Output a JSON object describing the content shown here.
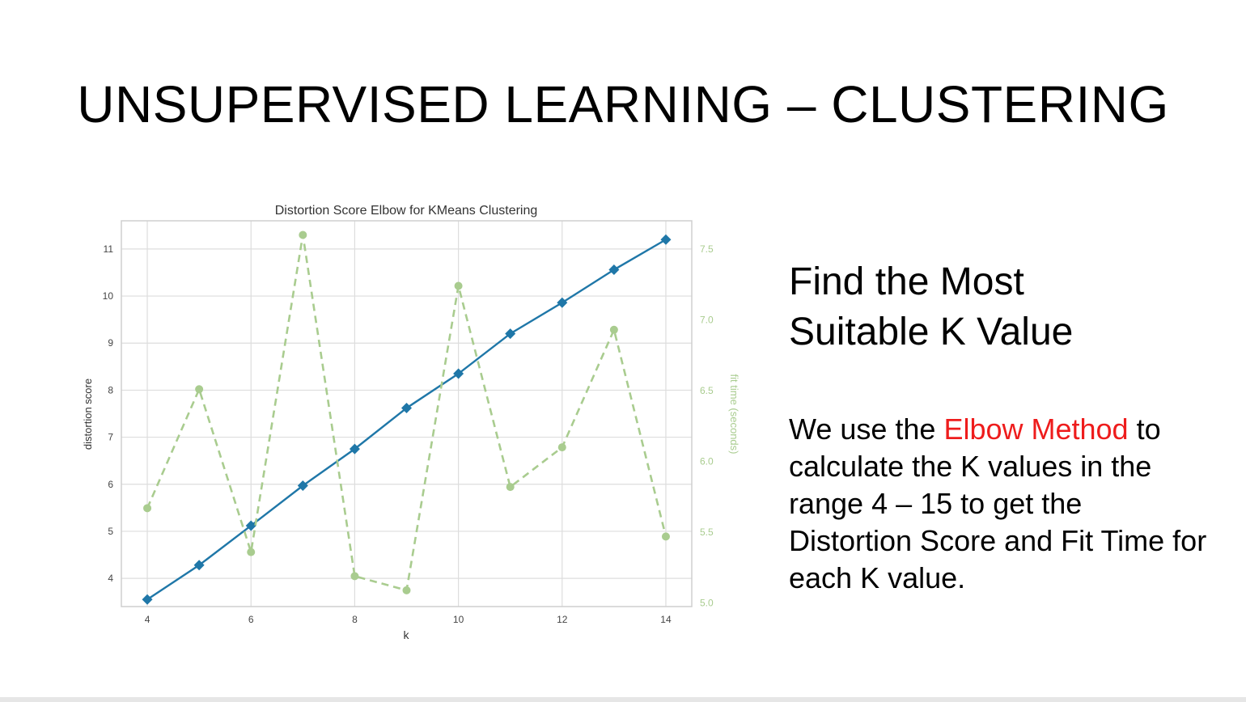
{
  "slide": {
    "title": "UNSUPERVISED LEARNING – CLUSTERING",
    "subtitle_line1": "Find the Most",
    "subtitle_line2": "Suitable K Value",
    "body_before": "We use the ",
    "body_highlight": "Elbow Method",
    "body_after": " to calculate the K values in the range 4 – 15 to get the Distortion Score and Fit Time for each K value.",
    "highlight_color": "#ee1c1c"
  },
  "chart_data": {
    "type": "line",
    "title": "Distortion Score Elbow for KMeans Clustering",
    "xlabel": "k",
    "ylabel": "distortion score",
    "y2label": "fit time (seconds)",
    "x": [
      4,
      5,
      6,
      7,
      8,
      9,
      10,
      11,
      12,
      13,
      14
    ],
    "xticks": [
      4,
      6,
      8,
      10,
      12,
      14
    ],
    "yticks": [
      4,
      5,
      6,
      7,
      8,
      9,
      10,
      11
    ],
    "y2ticks": [
      5.0,
      5.5,
      6.0,
      6.5,
      7.0,
      7.5
    ],
    "xlim": [
      3.5,
      14.5
    ],
    "ylim": [
      3.4,
      11.6
    ],
    "y2lim": [
      4.975,
      7.7
    ],
    "grid": true,
    "series": [
      {
        "axis": "left",
        "values": [
          3.55,
          4.28,
          5.12,
          5.97,
          6.75,
          7.62,
          8.35,
          9.2,
          9.86,
          10.56,
          11.2
        ],
        "color": "#1f77a8",
        "style": "solid",
        "marker": "diamond"
      },
      {
        "axis": "right",
        "values": [
          5.67,
          6.51,
          5.36,
          7.6,
          5.19,
          5.09,
          7.24,
          5.82,
          6.1,
          6.93,
          5.47
        ],
        "color": "#a9cc8f",
        "style": "dashed",
        "marker": "circle"
      }
    ]
  }
}
